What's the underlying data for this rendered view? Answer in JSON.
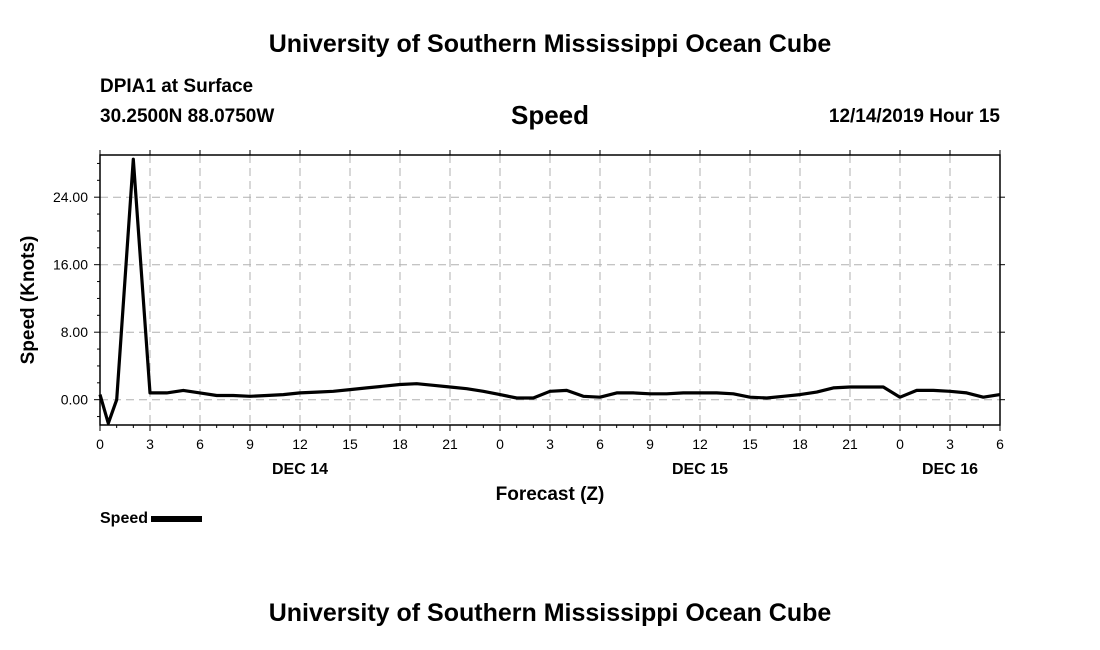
{
  "header": {
    "title": "University of Southern Mississippi Ocean Cube",
    "station": "DPIA1 at Surface",
    "coords": "30.2500N 88.0750W",
    "variable": "Speed",
    "datetime": "12/14/2019 Hour 15"
  },
  "footer": {
    "title": "University of Southern Mississippi Ocean Cube"
  },
  "legend": {
    "label": "Speed"
  },
  "chart_data": {
    "type": "line",
    "title": "Speed",
    "xlabel": "Forecast (Z)",
    "ylabel": "Speed (Knots)",
    "xlim": [
      0,
      54
    ],
    "ylim": [
      -3,
      29
    ],
    "grid": true,
    "x_ticks": [
      0,
      3,
      6,
      9,
      12,
      15,
      18,
      21,
      24,
      27,
      30,
      33,
      36,
      39,
      42,
      45,
      48,
      51,
      54
    ],
    "x_tick_labels": [
      "0",
      "3",
      "6",
      "9",
      "12",
      "15",
      "18",
      "21",
      "0",
      "3",
      "6",
      "9",
      "12",
      "15",
      "18",
      "21",
      "0",
      "3",
      "6"
    ],
    "y_ticks": [
      0,
      8,
      16,
      24
    ],
    "y_tick_labels": [
      "0.00",
      "8.00",
      "16.00",
      "24.00"
    ],
    "date_labels": [
      {
        "x": 12,
        "label": "DEC 14"
      },
      {
        "x": 36,
        "label": "DEC 15"
      },
      {
        "x": 51,
        "label": "DEC 16"
      }
    ],
    "series": [
      {
        "name": "Speed",
        "color": "#000000",
        "x": [
          0,
          0.5,
          1,
          2,
          3,
          4,
          5,
          6,
          7,
          8,
          9,
          10,
          11,
          12,
          13,
          14,
          15,
          16,
          17,
          18,
          19,
          20,
          21,
          22,
          23,
          24,
          25,
          26,
          27,
          28,
          29,
          30,
          31,
          32,
          33,
          34,
          35,
          36,
          37,
          38,
          39,
          40,
          41,
          42,
          43,
          44,
          45,
          46,
          47,
          48,
          49,
          50,
          51,
          52,
          53,
          54
        ],
        "values": [
          0.6,
          -2.8,
          0.0,
          28.5,
          0.8,
          0.8,
          1.1,
          0.8,
          0.5,
          0.5,
          0.4,
          0.5,
          0.6,
          0.8,
          0.9,
          1.0,
          1.2,
          1.4,
          1.6,
          1.8,
          1.9,
          1.7,
          1.5,
          1.3,
          1.0,
          0.6,
          0.2,
          0.2,
          1.0,
          1.1,
          0.4,
          0.3,
          0.8,
          0.8,
          0.7,
          0.7,
          0.8,
          0.8,
          0.8,
          0.7,
          0.3,
          0.2,
          0.4,
          0.6,
          0.9,
          1.4,
          1.5,
          1.5,
          1.5,
          0.3,
          1.1,
          1.1,
          1.0,
          0.8,
          0.3,
          0.6
        ]
      }
    ]
  }
}
